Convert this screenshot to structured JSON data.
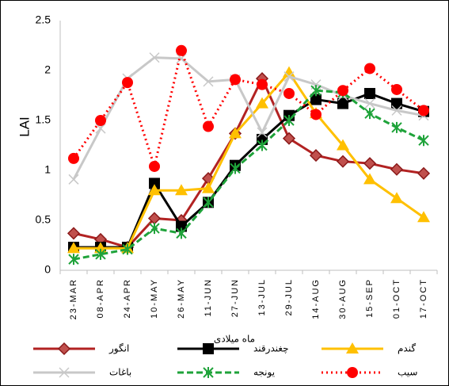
{
  "chart_data": {
    "type": "line",
    "y_label": "LAI",
    "x_label": "ماه میلادی",
    "categories": [
      "23-MAR",
      "08-APR",
      "24-APR",
      "10-MAY",
      "26-MAY",
      "11-JUN",
      "27-JUN",
      "13-JUL",
      "29-JUL",
      "14-AUG",
      "30-AUG",
      "15-SEP",
      "01-OCT",
      "17-OCT"
    ],
    "ylim": [
      0,
      2.5
    ],
    "yticks": [
      0,
      0.5,
      1,
      1.5,
      2,
      2.5
    ],
    "grid": false,
    "series": [
      {
        "name": "انگور",
        "color": "#b22222",
        "marker": "diamond",
        "dash": "solid",
        "values": [
          0.37,
          0.31,
          0.23,
          0.52,
          0.5,
          0.92,
          1.37,
          1.92,
          1.32,
          1.15,
          1.09,
          1.07,
          1.01,
          0.97
        ]
      },
      {
        "name": "چغندرقند",
        "color": "#000000",
        "marker": "square",
        "dash": "solid",
        "values": [
          0.23,
          0.23,
          0.23,
          0.87,
          0.44,
          0.68,
          1.05,
          1.31,
          1.55,
          1.71,
          1.67,
          1.77,
          1.67,
          1.59
        ]
      },
      {
        "name": "گندم",
        "color": "#ffc000",
        "marker": "triangle",
        "dash": "solid",
        "values": [
          0.22,
          0.22,
          0.22,
          0.8,
          0.8,
          0.82,
          1.37,
          1.67,
          1.98,
          1.57,
          1.25,
          0.91,
          0.72,
          0.53
        ]
      },
      {
        "name": "باغات",
        "color": "#c8c8c8",
        "marker": "x",
        "dash": "solid",
        "values": [
          0.91,
          1.42,
          1.92,
          2.13,
          2.12,
          1.89,
          1.91,
          1.38,
          1.94,
          1.86,
          1.75,
          1.67,
          1.6,
          1.55
        ]
      },
      {
        "name": "یونجه",
        "color": "#1fa33a",
        "marker": "star",
        "dash": "dashed",
        "values": [
          0.11,
          0.16,
          0.21,
          0.42,
          0.37,
          0.68,
          1.02,
          1.25,
          1.5,
          1.8,
          1.78,
          1.57,
          1.43,
          1.3
        ]
      },
      {
        "name": "سیب",
        "color": "#ff0000",
        "marker": "circle",
        "dash": "dotted",
        "values": [
          1.12,
          1.5,
          1.88,
          1.04,
          2.2,
          1.44,
          1.91,
          1.86,
          1.77,
          1.56,
          1.8,
          2.02,
          1.81,
          1.6
        ]
      }
    ]
  }
}
